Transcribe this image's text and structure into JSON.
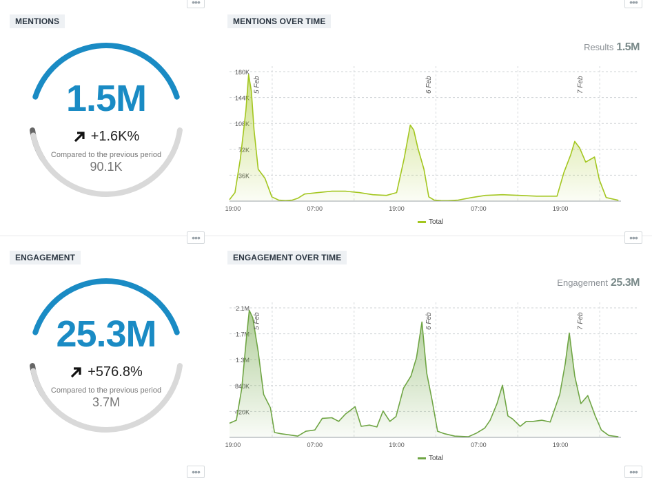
{
  "mentions": {
    "title": "MENTIONS",
    "value": "1.5M",
    "change": "+1.6K%",
    "compare_label": "Compared to the previous period",
    "previous": "90.1K",
    "gauge_fraction": 0.6
  },
  "mentions_over_time": {
    "title": "MENTIONS OVER TIME",
    "results_label": "Results",
    "results_value": "1.5M",
    "legend": "Total"
  },
  "engagement": {
    "title": "ENGAGEMENT",
    "value": "25.3M",
    "change": "+576.8%",
    "compare_label": "Compared to the previous period",
    "previous": "3.7M",
    "gauge_fraction": 0.6
  },
  "engagement_over_time": {
    "title": "ENGAGEMENT OVER TIME",
    "results_label": "Engagement",
    "results_value": "25.3M",
    "legend": "Total"
  },
  "colors": {
    "gauge_blue": "#1a8bc4",
    "gauge_gray": "#d9d9d9",
    "gauge_dark": "#666666",
    "mentions_line": "#a3c61f",
    "engagement_line": "#6fa544"
  },
  "chart_data": [
    {
      "type": "area",
      "title": "",
      "x_ticks": [
        "19:00",
        "07:00",
        "19:00",
        "07:00",
        "19:00"
      ],
      "day_markers": [
        "5 Feb",
        "6 Feb",
        "7 Feb"
      ],
      "y_ticks": [
        "36K",
        "72K",
        "108K",
        "144K",
        "180K"
      ],
      "ylim": [
        0,
        190000
      ],
      "x_hours": [
        0,
        12,
        24,
        36,
        48,
        60
      ],
      "series": [
        {
          "name": "Total",
          "points": [
            [
              0,
              2000
            ],
            [
              0.8,
              12000
            ],
            [
              1.6,
              60000
            ],
            [
              2.4,
              128000
            ],
            [
              2.8,
              178000
            ],
            [
              3.2,
              155000
            ],
            [
              3.6,
              100000
            ],
            [
              4.2,
              45000
            ],
            [
              5.2,
              32000
            ],
            [
              6.2,
              6000
            ],
            [
              7.2,
              1500
            ],
            [
              8.2,
              800
            ],
            [
              9.2,
              1500
            ],
            [
              10,
              4000
            ],
            [
              11,
              10000
            ],
            [
              13,
              12000
            ],
            [
              15,
              14000
            ],
            [
              17,
              14000
            ],
            [
              19,
              12000
            ],
            [
              21,
              9000
            ],
            [
              23,
              8000
            ],
            [
              24.5,
              12000
            ],
            [
              25.6,
              60000
            ],
            [
              26.5,
              107000
            ],
            [
              27,
              100000
            ],
            [
              27.6,
              75000
            ],
            [
              28.5,
              45000
            ],
            [
              29.2,
              6000
            ],
            [
              30,
              1500
            ],
            [
              31,
              800
            ],
            [
              32,
              700
            ],
            [
              33.5,
              1500
            ],
            [
              35.5,
              5000
            ],
            [
              37.5,
              8000
            ],
            [
              40,
              9000
            ],
            [
              42.5,
              8000
            ],
            [
              45,
              7000
            ],
            [
              48,
              7000
            ],
            [
              49,
              40000
            ],
            [
              50,
              65000
            ],
            [
              50.6,
              84000
            ],
            [
              51.3,
              75000
            ],
            [
              52.2,
              55000
            ],
            [
              53.5,
              62000
            ],
            [
              54.2,
              30000
            ],
            [
              55.2,
              5000
            ],
            [
              57,
              1200
            ]
          ]
        }
      ]
    },
    {
      "type": "area",
      "title": "",
      "x_ticks": [
        "19:00",
        "07:00",
        "19:00",
        "07:00",
        "19:00"
      ],
      "day_markers": [
        "5 Feb",
        "6 Feb",
        "7 Feb"
      ],
      "y_ticks": [
        "420K",
        "840K",
        "1.3M",
        "1.7M",
        "2.1M"
      ],
      "ylim": [
        0,
        2200000
      ],
      "x_hours": [
        0,
        12,
        24,
        36,
        48,
        60
      ],
      "series": [
        {
          "name": "Total",
          "points": [
            [
              0,
              230000
            ],
            [
              1,
              280000
            ],
            [
              1.8,
              800000
            ],
            [
              2.5,
              1650000
            ],
            [
              2.9,
              2070000
            ],
            [
              3.4,
              1950000
            ],
            [
              4.2,
              1400000
            ],
            [
              5,
              700000
            ],
            [
              6,
              480000
            ],
            [
              6.6,
              80000
            ],
            [
              7.5,
              60000
            ],
            [
              8.8,
              40000
            ],
            [
              10,
              20000
            ],
            [
              11.2,
              100000
            ],
            [
              12.5,
              120000
            ],
            [
              13.6,
              310000
            ],
            [
              15,
              320000
            ],
            [
              16,
              260000
            ],
            [
              17,
              380000
            ],
            [
              18.4,
              500000
            ],
            [
              19.3,
              180000
            ],
            [
              20.5,
              200000
            ],
            [
              21.6,
              170000
            ],
            [
              22.5,
              430000
            ],
            [
              23.5,
              260000
            ],
            [
              24.4,
              340000
            ],
            [
              25.5,
              800000
            ],
            [
              26.6,
              1000000
            ],
            [
              27.4,
              1300000
            ],
            [
              28.2,
              1880000
            ],
            [
              28.9,
              1050000
            ],
            [
              29.7,
              600000
            ],
            [
              30.5,
              100000
            ],
            [
              31.5,
              60000
            ],
            [
              33,
              20000
            ],
            [
              35,
              10000
            ],
            [
              36.2,
              70000
            ],
            [
              37.4,
              150000
            ],
            [
              38.2,
              280000
            ],
            [
              39.2,
              550000
            ],
            [
              40,
              850000
            ],
            [
              40.8,
              350000
            ],
            [
              41.5,
              300000
            ],
            [
              42.6,
              180000
            ],
            [
              43.5,
              260000
            ],
            [
              44.5,
              260000
            ],
            [
              45.8,
              280000
            ],
            [
              47,
              250000
            ],
            [
              48.4,
              700000
            ],
            [
              49.2,
              1200000
            ],
            [
              49.8,
              1700000
            ],
            [
              50.6,
              1000000
            ],
            [
              51.5,
              550000
            ],
            [
              52.5,
              680000
            ],
            [
              53.6,
              350000
            ],
            [
              54.5,
              120000
            ],
            [
              55.6,
              30000
            ],
            [
              57,
              10000
            ]
          ]
        }
      ]
    }
  ]
}
